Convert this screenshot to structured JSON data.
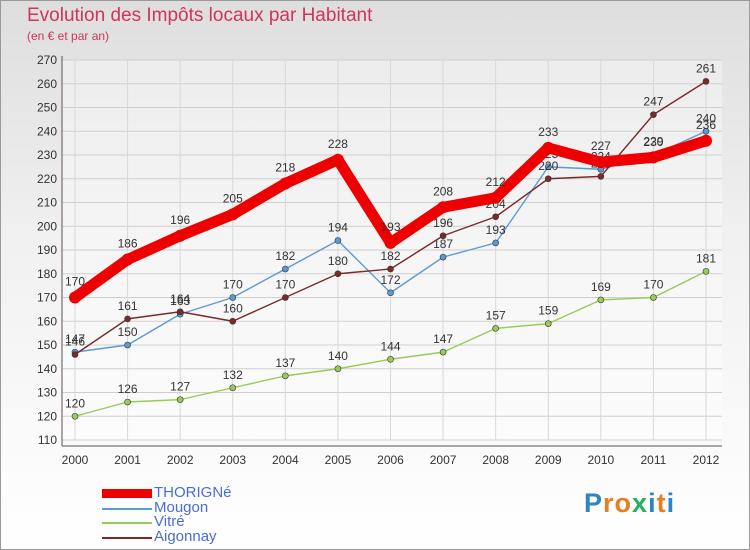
{
  "title": "Evolution des Impôts locaux par Habitant",
  "subtitle": "(en € et par an)",
  "logo": {
    "letters": [
      "P",
      "r",
      "o",
      "x",
      "i",
      "t",
      "i"
    ],
    "colors": [
      "#2e86c1",
      "#e67e22",
      "#e67e22",
      "#27ae60",
      "#2e86c1",
      "#e67e22",
      "#2e86c1"
    ]
  },
  "chart_data": {
    "type": "line",
    "title": "Evolution des Impôts locaux par Habitant",
    "subtitle": "(en € et par an)",
    "xlabel": "",
    "ylabel": "",
    "x": [
      "2000",
      "2001",
      "2002",
      "2003",
      "2004",
      "2005",
      "2006",
      "2007",
      "2008",
      "2009",
      "2010",
      "2011",
      "2012"
    ],
    "ylim": [
      110,
      270
    ],
    "yticks": [
      110,
      120,
      130,
      140,
      150,
      160,
      170,
      180,
      190,
      200,
      210,
      220,
      230,
      240,
      250,
      260,
      270
    ],
    "grid": true,
    "legend_position": "bottom-left",
    "series": [
      {
        "name": "THORIGNé",
        "color": "#ee0000",
        "values": [
          170,
          186,
          196,
          205,
          218,
          228,
          193,
          208,
          212,
          233,
          227,
          229,
          236
        ],
        "labels": [
          "170",
          "186",
          "196",
          "205",
          "218",
          "228",
          "193",
          "208",
          "212",
          "233",
          "227",
          "229",
          "236"
        ]
      },
      {
        "name": "Mougon",
        "color": "#5b9bd5",
        "values": [
          147,
          150,
          163,
          170,
          182,
          194,
          172,
          187,
          193,
          225,
          224,
          230,
          240
        ],
        "labels": [
          "147",
          "150",
          "163",
          "170",
          "182",
          "194",
          "172",
          "187",
          "193",
          "225",
          "224",
          "230",
          "240"
        ]
      },
      {
        "name": "Vitré",
        "color": "#99cc55",
        "values": [
          120,
          126,
          127,
          132,
          137,
          140,
          144,
          147,
          157,
          159,
          169,
          170,
          181
        ],
        "labels": [
          "120",
          "126",
          "127",
          "132",
          "137",
          "140",
          "144",
          "147",
          "157",
          "159",
          "169",
          "170",
          "181"
        ]
      },
      {
        "name": "Aigonnay",
        "color": "#7a2a2a",
        "values": [
          146,
          161,
          164,
          160,
          170,
          180,
          182,
          196,
          204,
          220,
          221,
          247,
          261
        ],
        "labels": [
          "146",
          "161",
          "164",
          "160",
          "170",
          "180",
          "182",
          "196",
          "204",
          "220",
          "221",
          "247",
          "261"
        ]
      }
    ]
  }
}
